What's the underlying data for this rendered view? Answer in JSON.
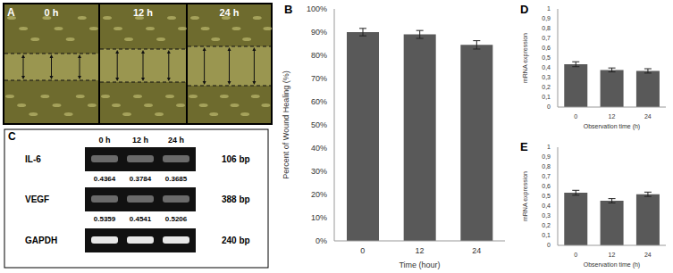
{
  "chart_data": [
    {
      "panel": "B",
      "type": "bar",
      "categories": [
        "0",
        "12",
        "24"
      ],
      "values": [
        90,
        89,
        84.5
      ],
      "errors": [
        1.6,
        1.7,
        1.8
      ],
      "color": "#595959",
      "x_label": "Time (hour)",
      "y_label": "Percent of Wound Healing (%)",
      "ylim": [
        0,
        100
      ],
      "yticks": [
        {
          "value": 0,
          "label": "0%"
        },
        {
          "value": 10,
          "label": "10%"
        },
        {
          "value": 20,
          "label": "20%"
        },
        {
          "value": 30,
          "label": "30%"
        },
        {
          "value": 40,
          "label": "40%"
        },
        {
          "value": 50,
          "label": "50%"
        },
        {
          "value": 60,
          "label": "60%"
        },
        {
          "value": 70,
          "label": "70%"
        },
        {
          "value": 80,
          "label": "80%"
        },
        {
          "value": 90,
          "label": "90%"
        },
        {
          "value": 100,
          "label": "100%"
        }
      ],
      "grid": false
    },
    {
      "panel": "D",
      "type": "bar",
      "categories": [
        "0",
        "12",
        "24"
      ],
      "values": [
        0.4364,
        0.3784,
        0.3685
      ],
      "errors": [
        0.025,
        0.02,
        0.022
      ],
      "color": "#595959",
      "x_label": "Observation time (h)",
      "y_label": "mRNA expression",
      "ylim": [
        0,
        1
      ],
      "yticks": [
        0,
        {
          "value": 0.1,
          "label": "0,1"
        },
        {
          "value": 0.2,
          "label": "0,2"
        },
        {
          "value": 0.3,
          "label": "0,3"
        },
        {
          "value": 0.4,
          "label": "0,4"
        },
        {
          "value": 0.5,
          "label": "0,5"
        },
        {
          "value": 0.6,
          "label": "0,6"
        },
        {
          "value": 0.7,
          "label": "0,7"
        },
        {
          "value": 0.8,
          "label": "0,8"
        },
        {
          "value": 0.9,
          "label": "0,9"
        },
        1
      ],
      "grid": false
    },
    {
      "panel": "E",
      "type": "bar",
      "categories": [
        "0",
        "12",
        "24"
      ],
      "values": [
        0.5359,
        0.4541,
        0.5206
      ],
      "errors": [
        0.025,
        0.022,
        0.022
      ],
      "color": "#595959",
      "x_label": "Observation time (h)",
      "y_label": "mRNA expression",
      "ylim": [
        0,
        1
      ],
      "yticks": [
        0,
        {
          "value": 0.1,
          "label": "0,1"
        },
        {
          "value": 0.2,
          "label": "0,2"
        },
        {
          "value": 0.3,
          "label": "0,3"
        },
        {
          "value": 0.4,
          "label": "0,4"
        },
        {
          "value": 0.5,
          "label": "0,5"
        },
        {
          "value": 0.6,
          "label": "0,6"
        },
        {
          "value": 0.7,
          "label": "0,7"
        },
        {
          "value": 0.8,
          "label": "0,8"
        },
        {
          "value": 0.9,
          "label": "0,9"
        },
        1
      ],
      "grid": false
    }
  ],
  "panel_A": {
    "panel": "A",
    "labels": [
      "0 h",
      "12 h",
      "24 h"
    ]
  },
  "panel_C": {
    "panel": "C",
    "columns": [
      "0 h",
      "12 h",
      "24 h"
    ],
    "rows": [
      {
        "gene": "IL-6",
        "values": [
          0.4364,
          0.3784,
          0.3685
        ],
        "size": "106 bp"
      },
      {
        "gene": "VEGF",
        "values": [
          0.5359,
          0.4541,
          0.5206
        ],
        "size": "388 bp"
      },
      {
        "gene": "GAPDH",
        "size": "240 bp"
      }
    ]
  }
}
